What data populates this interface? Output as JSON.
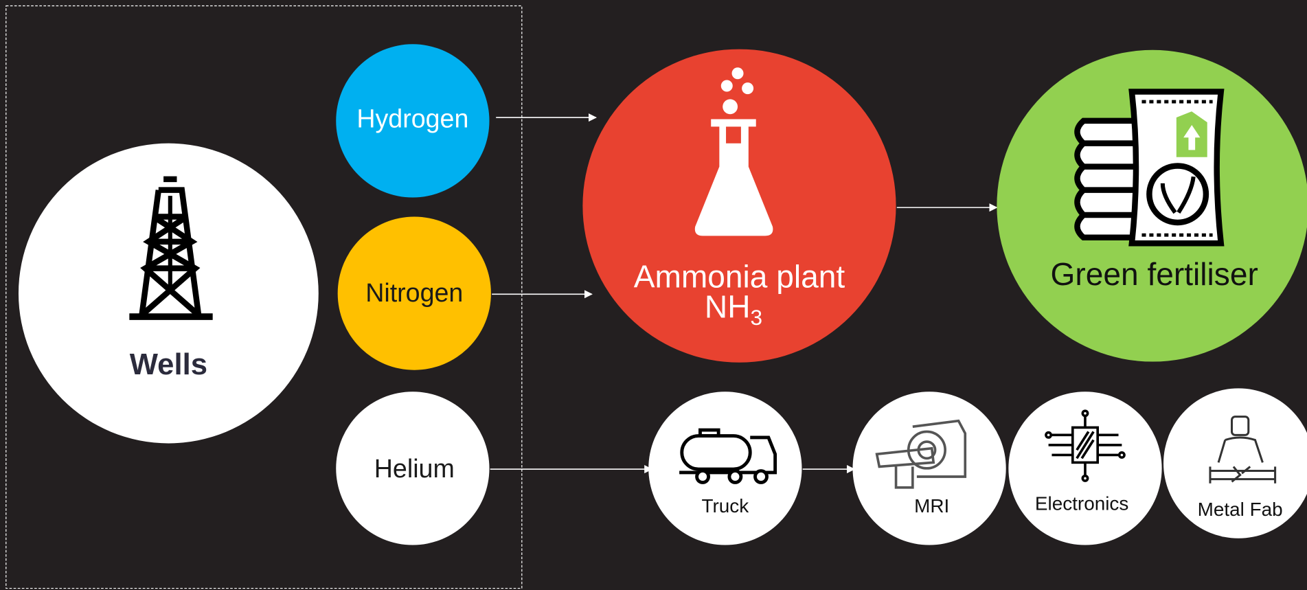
{
  "nodes": {
    "wells": {
      "label": "Wells"
    },
    "hydrogen": {
      "label": "Hydrogen"
    },
    "nitrogen": {
      "label": "Nitrogen"
    },
    "helium": {
      "label": "Helium"
    },
    "ammonia": {
      "label": "Ammonia plant",
      "formula": {
        "base": "NH",
        "subscript": "3"
      }
    },
    "fertiliser": {
      "label": "Green fertiliser"
    },
    "truck": {
      "label": "Truck"
    },
    "mri": {
      "label": "MRI"
    },
    "electronics": {
      "label": "Electronics"
    },
    "metal_fab": {
      "label": "Metal Fab"
    }
  }
}
